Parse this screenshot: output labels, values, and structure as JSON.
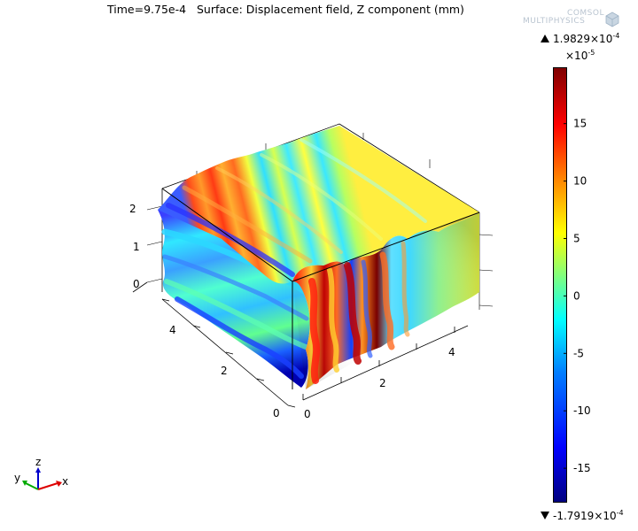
{
  "header": {
    "title": "Time=9.75e-4   Surface: Displacement field, Z component (mm)",
    "logo_line1": "COMSOL",
    "logo_line2": "MULTIPHYSICS"
  },
  "colorbar": {
    "max_value": "1.9829",
    "max_exp": "-4",
    "multiplier_exp": "-5",
    "min_value": "-1.7919",
    "min_exp": "-4",
    "ticks": [
      "15",
      "10",
      "5",
      "0",
      "-5",
      "-10",
      "-15"
    ],
    "colormap": [
      "#00007f",
      "#0000ff",
      "#007fff",
      "#00ffff",
      "#7fff7f",
      "#ffff00",
      "#ff7f00",
      "#ff0000",
      "#7f0000"
    ]
  },
  "axes": {
    "z_ticks": [
      "0",
      "1",
      "2"
    ],
    "y_ticks": [
      "0",
      "2",
      "4"
    ],
    "x_ticks": [
      "0",
      "2",
      "4"
    ]
  },
  "triad": {
    "x": "x",
    "y": "y",
    "z": "z"
  },
  "chart_data": {
    "type": "3d-surface",
    "title": "Time=9.75e-4   Surface: Displacement field, Z component (mm)",
    "quantity": "Displacement field, Z component",
    "unit": "mm",
    "time": 0.000975,
    "color_range": [
      -0.00017919,
      0.00019829
    ],
    "colorbar_ticks": [
      15,
      10,
      5,
      0,
      -5,
      -10,
      -15
    ],
    "colorbar_multiplier": "x10^-5",
    "axis_ranges": {
      "x": [
        0,
        5
      ],
      "y": [
        0,
        5
      ],
      "z": [
        0,
        2.5
      ]
    },
    "x_ticks": [
      0,
      2,
      4
    ],
    "y_ticks": [
      0,
      2,
      4
    ],
    "z_ticks": [
      0,
      1,
      2
    ]
  }
}
